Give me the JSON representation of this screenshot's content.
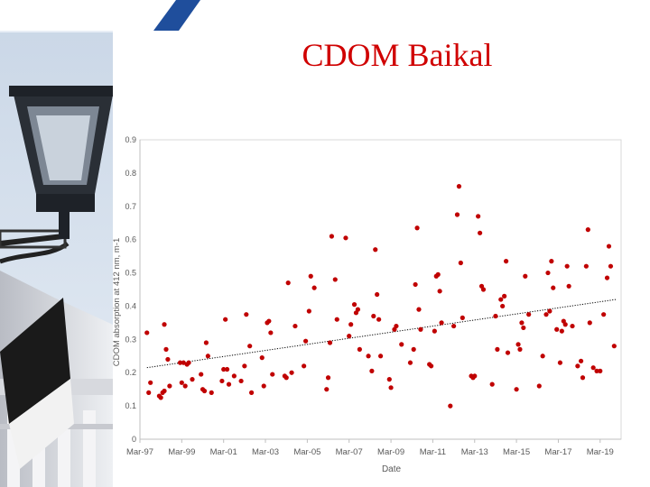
{
  "slide": {
    "title": "CDOM Baikal"
  },
  "decoration": {
    "photo_icon": "street-lamp-and-building-photo-icon",
    "band_color": "#1f4e9c"
  },
  "chart_data": {
    "type": "scatter",
    "title": "",
    "xlabel": "Date",
    "ylabel": "CDOM absorption at 412 nm, m-1",
    "ylim": [
      0,
      0.9
    ],
    "xlim": [
      "1997-03-01",
      "2020-03-01"
    ],
    "y_ticks": [
      "0",
      "0.1",
      "0.2",
      "0.3",
      "0.4",
      "0.5",
      "0.6",
      "0.7",
      "0.8",
      "0.9"
    ],
    "x_ticks": [
      {
        "date": "1997-03-01",
        "label": "Mar-97"
      },
      {
        "date": "1999-03-01",
        "label": "Mar-99"
      },
      {
        "date": "2001-03-01",
        "label": "Mar-01"
      },
      {
        "date": "2003-03-01",
        "label": "Mar-03"
      },
      {
        "date": "2005-03-01",
        "label": "Mar-05"
      },
      {
        "date": "2007-03-01",
        "label": "Mar-07"
      },
      {
        "date": "2009-03-01",
        "label": "Mar-09"
      },
      {
        "date": "2011-03-01",
        "label": "Mar-11"
      },
      {
        "date": "2013-03-01",
        "label": "Mar-13"
      },
      {
        "date": "2015-03-01",
        "label": "Mar-15"
      },
      {
        "date": "2017-03-01",
        "label": "Mar-17"
      },
      {
        "date": "2019-03-01",
        "label": "Mar-19"
      }
    ],
    "grid": false,
    "marker_color": "#c00000",
    "series": [
      {
        "points": [
          [
            "1997-07",
            0.32
          ],
          [
            "1997-08",
            0.14
          ],
          [
            "1997-09",
            0.17
          ],
          [
            "1998-02",
            0.13
          ],
          [
            "1998-03",
            0.125
          ],
          [
            "1998-04",
            0.14
          ],
          [
            "1998-05",
            0.145
          ],
          [
            "1998-05",
            0.345
          ],
          [
            "1998-06",
            0.27
          ],
          [
            "1998-07",
            0.24
          ],
          [
            "1998-08",
            0.16
          ],
          [
            "1999-02",
            0.23
          ],
          [
            "1999-03",
            0.17
          ],
          [
            "1999-04",
            0.23
          ],
          [
            "1999-05",
            0.16
          ],
          [
            "1999-06",
            0.225
          ],
          [
            "1999-07",
            0.23
          ],
          [
            "1999-09",
            0.18
          ],
          [
            "2000-02",
            0.195
          ],
          [
            "2000-03",
            0.15
          ],
          [
            "2000-04",
            0.145
          ],
          [
            "2000-05",
            0.29
          ],
          [
            "2000-06",
            0.25
          ],
          [
            "2000-08",
            0.14
          ],
          [
            "2001-02",
            0.175
          ],
          [
            "2001-03",
            0.21
          ],
          [
            "2001-04",
            0.36
          ],
          [
            "2001-05",
            0.21
          ],
          [
            "2001-06",
            0.165
          ],
          [
            "2001-09",
            0.19
          ],
          [
            "2002-01",
            0.175
          ],
          [
            "2002-03",
            0.22
          ],
          [
            "2002-04",
            0.375
          ],
          [
            "2002-06",
            0.28
          ],
          [
            "2002-07",
            0.14
          ],
          [
            "2003-01",
            0.245
          ],
          [
            "2003-02",
            0.16
          ],
          [
            "2003-04",
            0.35
          ],
          [
            "2003-05",
            0.355
          ],
          [
            "2003-06",
            0.32
          ],
          [
            "2003-07",
            0.195
          ],
          [
            "2004-02",
            0.19
          ],
          [
            "2004-03",
            0.185
          ],
          [
            "2004-04",
            0.47
          ],
          [
            "2004-06",
            0.2
          ],
          [
            "2004-08",
            0.34
          ],
          [
            "2005-01",
            0.22
          ],
          [
            "2005-02",
            0.295
          ],
          [
            "2005-04",
            0.385
          ],
          [
            "2005-05",
            0.49
          ],
          [
            "2005-07",
            0.455
          ],
          [
            "2006-02",
            0.15
          ],
          [
            "2006-03",
            0.185
          ],
          [
            "2006-04",
            0.29
          ],
          [
            "2006-05",
            0.61
          ],
          [
            "2006-07",
            0.48
          ],
          [
            "2006-08",
            0.36
          ],
          [
            "2007-01",
            0.605
          ],
          [
            "2007-03",
            0.31
          ],
          [
            "2007-04",
            0.345
          ],
          [
            "2007-06",
            0.405
          ],
          [
            "2007-07",
            0.38
          ],
          [
            "2007-08",
            0.39
          ],
          [
            "2007-09",
            0.27
          ],
          [
            "2008-02",
            0.25
          ],
          [
            "2008-04",
            0.205
          ],
          [
            "2008-05",
            0.37
          ],
          [
            "2008-06",
            0.57
          ],
          [
            "2008-07",
            0.435
          ],
          [
            "2008-08",
            0.36
          ],
          [
            "2008-09",
            0.25
          ],
          [
            "2009-02",
            0.18
          ],
          [
            "2009-03",
            0.155
          ],
          [
            "2009-05",
            0.33
          ],
          [
            "2009-06",
            0.34
          ],
          [
            "2009-09",
            0.285
          ],
          [
            "2010-02",
            0.23
          ],
          [
            "2010-04",
            0.27
          ],
          [
            "2010-05",
            0.465
          ],
          [
            "2010-06",
            0.635
          ],
          [
            "2010-07",
            0.39
          ],
          [
            "2010-08",
            0.33
          ],
          [
            "2011-01",
            0.225
          ],
          [
            "2011-02",
            0.22
          ],
          [
            "2011-04",
            0.325
          ],
          [
            "2011-05",
            0.49
          ],
          [
            "2011-06",
            0.495
          ],
          [
            "2011-07",
            0.445
          ],
          [
            "2011-08",
            0.35
          ],
          [
            "2012-01",
            0.1
          ],
          [
            "2012-03",
            0.34
          ],
          [
            "2012-06",
            0.76
          ],
          [
            "2012-05",
            0.675
          ],
          [
            "2012-07",
            0.53
          ],
          [
            "2012-08",
            0.365
          ],
          [
            "2013-01",
            0.19
          ],
          [
            "2013-02",
            0.185
          ],
          [
            "2013-03",
            0.19
          ],
          [
            "2013-05",
            0.67
          ],
          [
            "2013-06",
            0.62
          ],
          [
            "2013-07",
            0.46
          ],
          [
            "2013-08",
            0.45
          ],
          [
            "2014-01",
            0.165
          ],
          [
            "2014-03",
            0.37
          ],
          [
            "2014-04",
            0.27
          ],
          [
            "2014-06",
            0.42
          ],
          [
            "2014-07",
            0.4
          ],
          [
            "2014-08",
            0.43
          ],
          [
            "2014-09",
            0.535
          ],
          [
            "2014-10",
            0.26
          ],
          [
            "2015-03",
            0.15
          ],
          [
            "2015-04",
            0.285
          ],
          [
            "2015-05",
            0.27
          ],
          [
            "2015-06",
            0.35
          ],
          [
            "2015-07",
            0.335
          ],
          [
            "2015-08",
            0.49
          ],
          [
            "2015-10",
            0.375
          ],
          [
            "2016-04",
            0.16
          ],
          [
            "2016-06",
            0.25
          ],
          [
            "2016-08",
            0.375
          ],
          [
            "2016-09",
            0.5
          ],
          [
            "2016-10",
            0.385
          ],
          [
            "2016-11",
            0.535
          ],
          [
            "2016-12",
            0.455
          ],
          [
            "2017-02",
            0.33
          ],
          [
            "2017-04",
            0.23
          ],
          [
            "2017-05",
            0.325
          ],
          [
            "2017-06",
            0.355
          ],
          [
            "2017-07",
            0.345
          ],
          [
            "2017-08",
            0.52
          ],
          [
            "2017-09",
            0.46
          ],
          [
            "2017-11",
            0.34
          ],
          [
            "2018-02",
            0.22
          ],
          [
            "2018-04",
            0.235
          ],
          [
            "2018-05",
            0.185
          ],
          [
            "2018-07",
            0.52
          ],
          [
            "2018-08",
            0.63
          ],
          [
            "2018-09",
            0.35
          ],
          [
            "2018-11",
            0.215
          ],
          [
            "2019-01",
            0.205
          ],
          [
            "2019-03",
            0.205
          ],
          [
            "2019-05",
            0.375
          ],
          [
            "2019-07",
            0.485
          ],
          [
            "2019-08",
            0.58
          ],
          [
            "2019-09",
            0.52
          ],
          [
            "2019-11",
            0.28
          ]
        ]
      }
    ],
    "trendline": {
      "style": "dotted",
      "color": "#000000",
      "from": [
        "1997-07",
        0.215
      ],
      "to": [
        "2019-12",
        0.42
      ]
    }
  }
}
